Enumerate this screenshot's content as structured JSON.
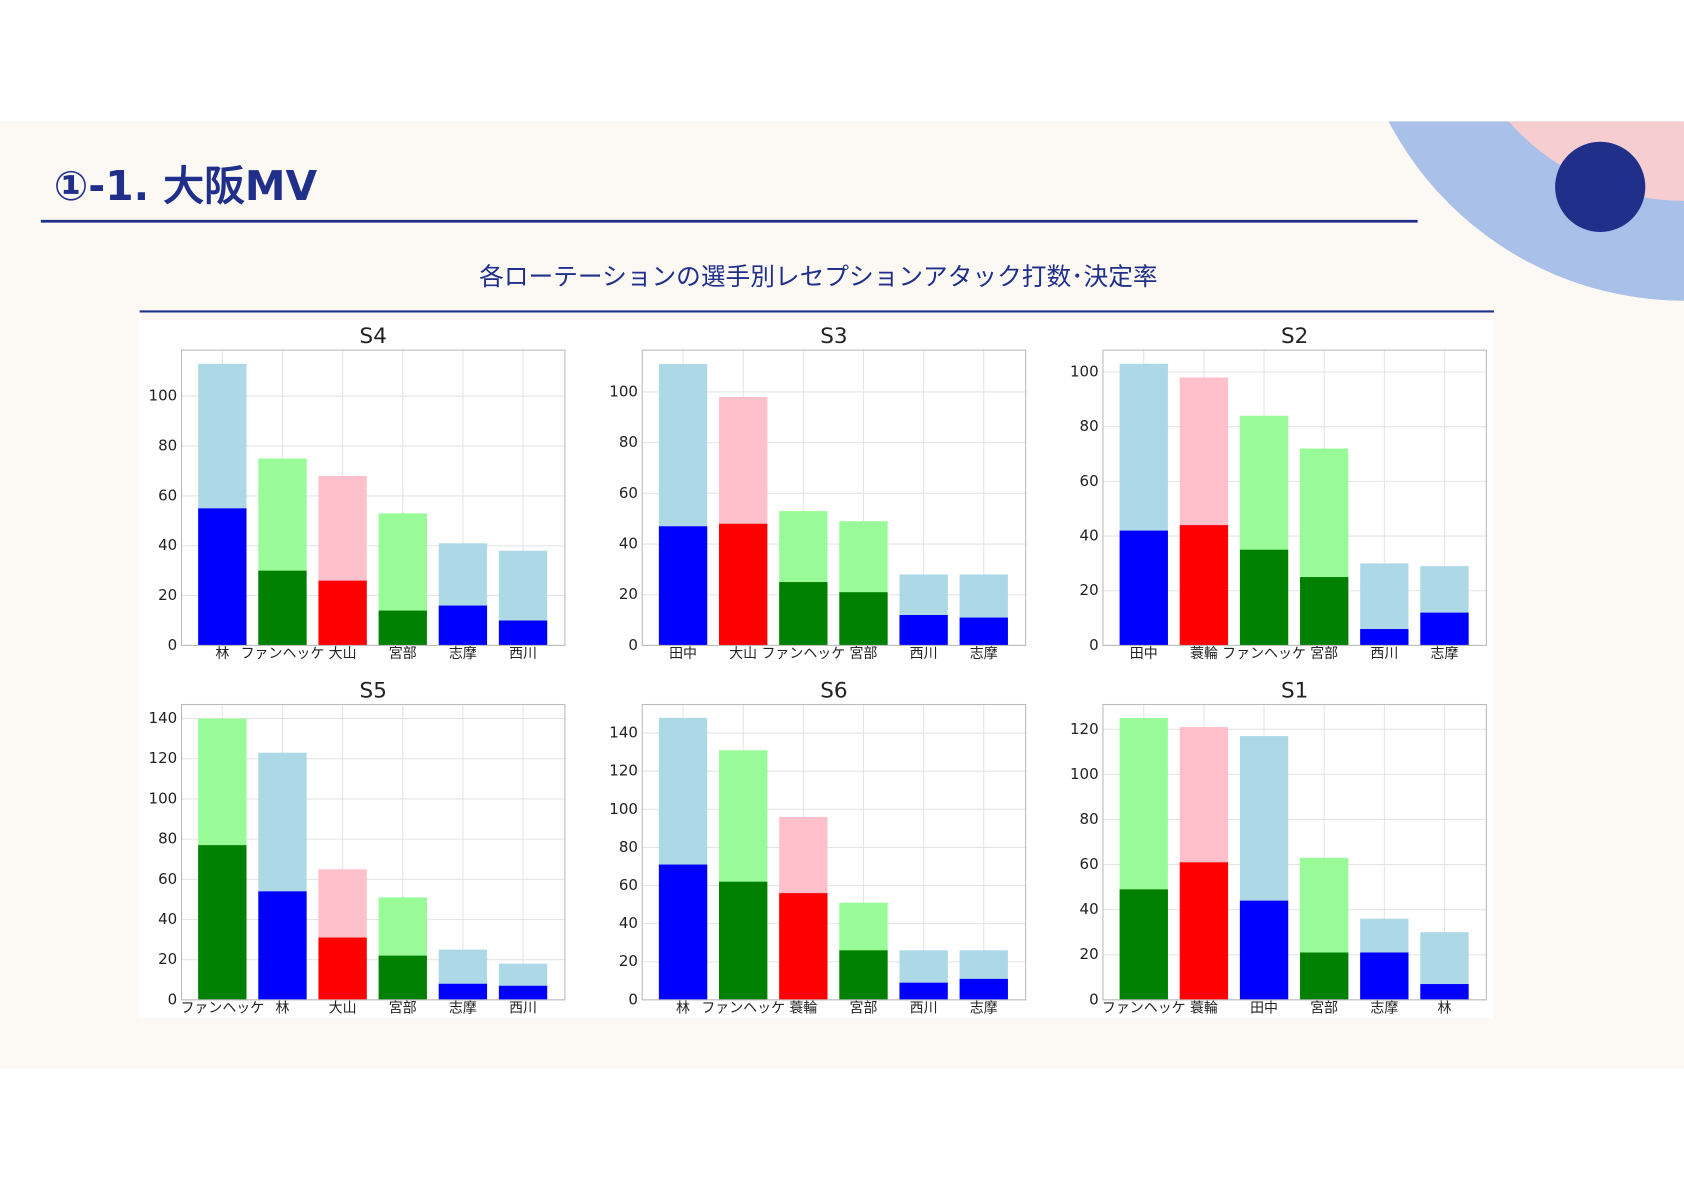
{
  "header": {
    "title": "①-1. 大阪MV",
    "subtitle": "各ローテーションの選手別レセプションアタック打数･決定率"
  },
  "chart_data": [
    {
      "type": "bar",
      "title": "S4",
      "barmode": "overlay",
      "grid": true,
      "categories": [
        "林",
        "ファンヘッケ",
        "大山",
        "宮部",
        "志摩",
        "西川"
      ],
      "series": [
        {
          "values": [
            113,
            75,
            68,
            53,
            41,
            38
          ],
          "colors": [
            "#add8e6",
            "#98fb98",
            "#ffc0cb",
            "#98fb98",
            "#add8e6",
            "#add8e6"
          ]
        },
        {
          "values": [
            55,
            30,
            26,
            14,
            16,
            10
          ],
          "colors": [
            "#0000ff",
            "#008000",
            "#ff0000",
            "#008000",
            "#0000ff",
            "#0000ff"
          ]
        }
      ],
      "ylim": [
        0,
        118.5
      ],
      "yticks": [
        0,
        20,
        40,
        60,
        80,
        100
      ]
    },
    {
      "type": "bar",
      "title": "S3",
      "barmode": "overlay",
      "grid": true,
      "categories": [
        "田中",
        "大山",
        "ファンヘッケ",
        "宮部",
        "西川",
        "志摩"
      ],
      "series": [
        {
          "values": [
            111,
            98,
            53,
            49,
            28,
            28
          ],
          "colors": [
            "#add8e6",
            "#ffc0cb",
            "#98fb98",
            "#98fb98",
            "#add8e6",
            "#add8e6"
          ]
        },
        {
          "values": [
            47,
            48,
            25,
            21,
            12,
            11
          ],
          "colors": [
            "#0000ff",
            "#ff0000",
            "#008000",
            "#008000",
            "#0000ff",
            "#0000ff"
          ]
        }
      ],
      "ylim": [
        0,
        116.5
      ],
      "yticks": [
        0,
        20,
        40,
        60,
        80,
        100
      ]
    },
    {
      "type": "bar",
      "title": "S2",
      "barmode": "overlay",
      "grid": true,
      "categories": [
        "田中",
        "蓑輪",
        "ファンヘッケ",
        "宮部",
        "西川",
        "志摩"
      ],
      "series": [
        {
          "values": [
            103,
            98,
            84,
            72,
            30,
            29
          ],
          "colors": [
            "#add8e6",
            "#ffc0cb",
            "#98fb98",
            "#98fb98",
            "#add8e6",
            "#add8e6"
          ]
        },
        {
          "values": [
            42,
            44,
            35,
            25,
            6,
            12
          ],
          "colors": [
            "#0000ff",
            "#ff0000",
            "#008000",
            "#008000",
            "#0000ff",
            "#0000ff"
          ]
        }
      ],
      "ylim": [
        0,
        108
      ],
      "yticks": [
        0,
        20,
        40,
        60,
        80,
        100
      ]
    },
    {
      "type": "bar",
      "title": "S5",
      "barmode": "overlay",
      "grid": true,
      "categories": [
        "ファンヘッケ",
        "林",
        "大山",
        "宮部",
        "志摩",
        "西川"
      ],
      "series": [
        {
          "values": [
            140,
            123,
            65,
            51,
            25,
            18
          ],
          "colors": [
            "#98fb98",
            "#add8e6",
            "#ffc0cb",
            "#98fb98",
            "#add8e6",
            "#add8e6"
          ]
        },
        {
          "values": [
            77,
            54,
            31,
            22,
            8,
            7
          ],
          "colors": [
            "#008000",
            "#0000ff",
            "#ff0000",
            "#008000",
            "#0000ff",
            "#0000ff"
          ]
        }
      ],
      "ylim": [
        0,
        147
      ],
      "yticks": [
        0,
        20,
        40,
        60,
        80,
        100,
        120,
        140
      ]
    },
    {
      "type": "bar",
      "title": "S6",
      "barmode": "overlay",
      "grid": true,
      "categories": [
        "林",
        "ファンヘッケ",
        "蓑輪",
        "宮部",
        "西川",
        "志摩"
      ],
      "series": [
        {
          "values": [
            148,
            131,
            96,
            51,
            26,
            26
          ],
          "colors": [
            "#add8e6",
            "#98fb98",
            "#ffc0cb",
            "#98fb98",
            "#add8e6",
            "#add8e6"
          ]
        },
        {
          "values": [
            71,
            62,
            56,
            26,
            9,
            11
          ],
          "colors": [
            "#0000ff",
            "#008000",
            "#ff0000",
            "#008000",
            "#0000ff",
            "#0000ff"
          ]
        }
      ],
      "ylim": [
        0,
        155
      ],
      "yticks": [
        0,
        20,
        40,
        60,
        80,
        100,
        120,
        140
      ]
    },
    {
      "type": "bar",
      "title": "S1",
      "barmode": "overlay",
      "grid": true,
      "categories": [
        "ファンヘッケ",
        "蓑輪",
        "田中",
        "宮部",
        "志摩",
        "林"
      ],
      "series": [
        {
          "values": [
            125,
            121,
            117,
            63,
            36,
            30
          ],
          "colors": [
            "#98fb98",
            "#ffc0cb",
            "#add8e6",
            "#98fb98",
            "#add8e6",
            "#add8e6"
          ]
        },
        {
          "values": [
            49,
            61,
            44,
            21,
            21,
            7
          ],
          "colors": [
            "#008000",
            "#ff0000",
            "#0000ff",
            "#008000",
            "#0000ff",
            "#0000ff"
          ]
        }
      ],
      "ylim": [
        0,
        131
      ],
      "yticks": [
        0,
        20,
        40,
        60,
        80,
        100,
        120
      ]
    }
  ]
}
